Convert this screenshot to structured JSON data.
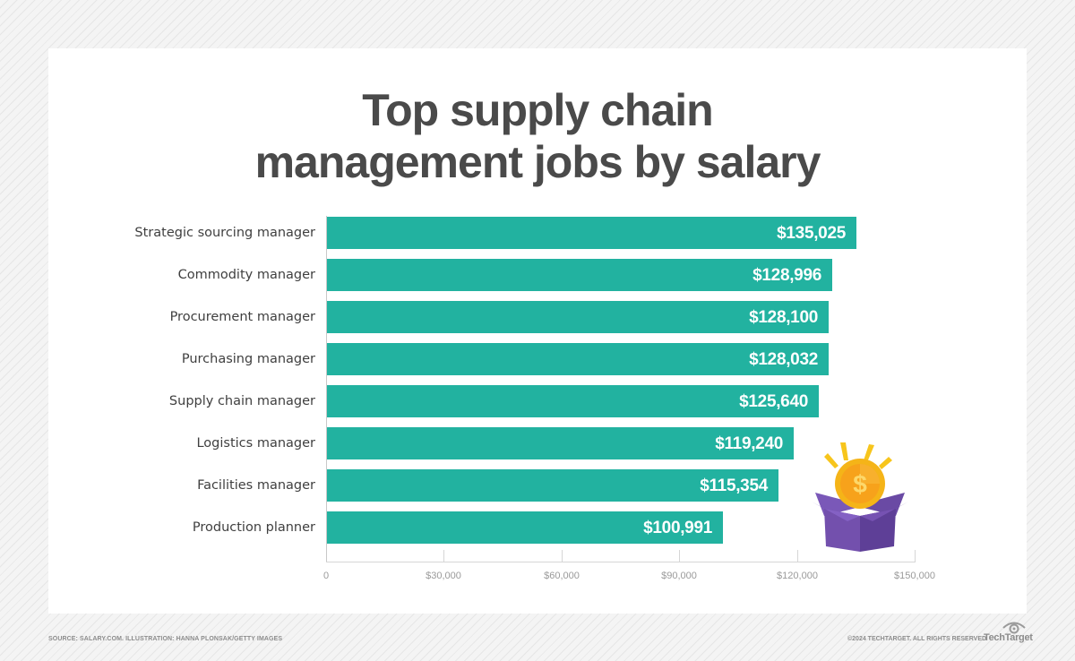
{
  "title_line1": "Top supply chain",
  "title_line2": "management jobs by salary",
  "colors": {
    "bar": "#22b2a0",
    "title": "#4a4a4a",
    "label": "#3f3f3f",
    "box": "#7050a8",
    "coin": "#f7b71c"
  },
  "chart_data": {
    "type": "bar",
    "orientation": "horizontal",
    "title": "Top supply chain management jobs by salary",
    "categories": [
      "Strategic sourcing manager",
      "Commodity manager",
      "Procurement manager",
      "Purchasing manager",
      "Supply chain manager",
      "Logistics manager",
      "Facilities manager",
      "Production planner"
    ],
    "values": [
      135025,
      128996,
      128100,
      128032,
      125640,
      119240,
      115354,
      100991
    ],
    "value_labels": [
      "$135,025",
      "$128,996",
      "$128,100",
      "$128,032",
      "$125,640",
      "$119,240",
      "$115,354",
      "$100,991"
    ],
    "xlabel": "",
    "ylabel": "",
    "xlim": [
      0,
      150000
    ],
    "x_ticks": [
      "0",
      "$30,000",
      "$60,000",
      "$90,000",
      "$120,000",
      "$150,000"
    ],
    "grid": false,
    "legend": null
  },
  "illustration": {
    "icon": "coin-in-box-icon",
    "coin_symbol": "$"
  },
  "footer": {
    "source": "SOURCE: SALARY.COM. ILLUSTRATION: HANNA PLONSAK/GETTY IMAGES",
    "copyright": "©2024 TECHTARGET. ALL RIGHTS RESERVED",
    "brand": "TechTarget"
  }
}
